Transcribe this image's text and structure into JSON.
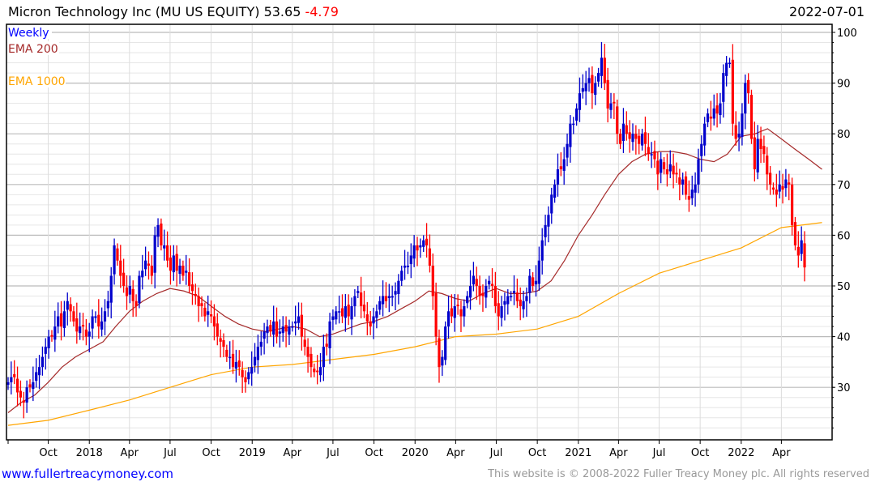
{
  "header": {
    "title": "Micron Technology Inc (MU US EQUITY)",
    "last": "53.65",
    "change": "-4.79",
    "date": "2022-07-01"
  },
  "footer": {
    "site": "www.fullertreacymoney.com",
    "copyright": "This website is © 2008-2022 Fuller Treacy Money plc. All rights reserved"
  },
  "colors": {
    "up": "#0000cc",
    "down": "#ff0000",
    "ema200": "#a52a2a",
    "ema1000": "#ffa500",
    "weekly": "#0000ff"
  },
  "chart_data": {
    "type": "candlestick",
    "title": "Micron Technology Inc (MU US EQUITY)",
    "legend": [
      "Weekly",
      "EMA 200",
      "EMA 1000"
    ],
    "legend_placement": "top-left",
    "start_week": "2017-07-03",
    "ylim": [
      20,
      101
    ],
    "yticks": [
      30,
      40,
      50,
      60,
      70,
      80,
      90,
      100
    ],
    "xticks": [
      {
        "label": "Oct",
        "date": "2017-10-01"
      },
      {
        "label": "2018",
        "date": "2018-01-01"
      },
      {
        "label": "Apr",
        "date": "2018-04-01"
      },
      {
        "label": "Jul",
        "date": "2018-07-01"
      },
      {
        "label": "Oct",
        "date": "2018-10-01"
      },
      {
        "label": "2019",
        "date": "2019-01-01"
      },
      {
        "label": "Apr",
        "date": "2019-04-01"
      },
      {
        "label": "Jul",
        "date": "2019-07-01"
      },
      {
        "label": "Oct",
        "date": "2019-10-01"
      },
      {
        "label": "2020",
        "date": "2020-01-01"
      },
      {
        "label": "Apr",
        "date": "2020-04-01"
      },
      {
        "label": "Jul",
        "date": "2020-07-01"
      },
      {
        "label": "Oct",
        "date": "2020-10-01"
      },
      {
        "label": "2021",
        "date": "2021-01-01"
      },
      {
        "label": "Apr",
        "date": "2021-04-01"
      },
      {
        "label": "Jul",
        "date": "2021-07-01"
      },
      {
        "label": "Oct",
        "date": "2021-10-01"
      },
      {
        "label": "2022",
        "date": "2022-01-01"
      },
      {
        "label": "Apr",
        "date": "2022-04-01"
      }
    ],
    "weekly_close": [
      31,
      32,
      32,
      29,
      28,
      27,
      30,
      30,
      31,
      33,
      34,
      36,
      38,
      40,
      40,
      42,
      44,
      42,
      45,
      47,
      45,
      43,
      41,
      42,
      42,
      40,
      41,
      44,
      44,
      42,
      43,
      45,
      47,
      52,
      58,
      55,
      52,
      50,
      48,
      50,
      47,
      46,
      52,
      53,
      55,
      54,
      52,
      60,
      62,
      58,
      58,
      55,
      53,
      56,
      53,
      54,
      52,
      53,
      50,
      49,
      48,
      46,
      46,
      44,
      45,
      44,
      42,
      40,
      39,
      38,
      36,
      36,
      34,
      35,
      34,
      32,
      31,
      33,
      34,
      36,
      38,
      39,
      41,
      42,
      41,
      43,
      40,
      41,
      42,
      41,
      42,
      42,
      43,
      44,
      40,
      38,
      36,
      34,
      33,
      33,
      34,
      38,
      38,
      43,
      44,
      45,
      45,
      44,
      46,
      44,
      46,
      48,
      49,
      46,
      45,
      43,
      42,
      44,
      45,
      47,
      48,
      47,
      48,
      48,
      49,
      51,
      53,
      54,
      54,
      56,
      58,
      57,
      58,
      59,
      58,
      54,
      48,
      40,
      34,
      36,
      42,
      45,
      44,
      46,
      46,
      44,
      46,
      48,
      50,
      52,
      50,
      48,
      48,
      50,
      51,
      50,
      46,
      44,
      46,
      47,
      48,
      48,
      49,
      47,
      46,
      47,
      48,
      52,
      50,
      51,
      55,
      59,
      62,
      64,
      68,
      70,
      73,
      73,
      75,
      78,
      82,
      82,
      85,
      88,
      89,
      90,
      91,
      88,
      90,
      92,
      95,
      90,
      85,
      86,
      86,
      80,
      78,
      82,
      80,
      79,
      80,
      79,
      78,
      80,
      78,
      76,
      76,
      75,
      72,
      75,
      73,
      72,
      74,
      72,
      72,
      70,
      71,
      68,
      67,
      69,
      70,
      75,
      78,
      82,
      84,
      83,
      85,
      84,
      86,
      92,
      94,
      94,
      82,
      79,
      80,
      84,
      90,
      88,
      79,
      73,
      79,
      77,
      76,
      72,
      70,
      69,
      68,
      70,
      69,
      71,
      70,
      62,
      58,
      56,
      59,
      53.65
    ],
    "ema200_monthly": {
      "start": "2017-07-01",
      "values": [
        25,
        27,
        28.5,
        31,
        34,
        36,
        37.5,
        39,
        42,
        45,
        47,
        48.5,
        49.5,
        49,
        48,
        46,
        44,
        42.5,
        41.5,
        41,
        41.5,
        42,
        41.5,
        40,
        40.5,
        41.5,
        42.5,
        43,
        44,
        45.5,
        47,
        49,
        48.5,
        47.5,
        47,
        48.5,
        49.5,
        48.5,
        48.5,
        49,
        51,
        55,
        60,
        64,
        68,
        72,
        74.5,
        76,
        76.5,
        76.5,
        76,
        75,
        74.5,
        76,
        79.5,
        80,
        81,
        79,
        77,
        75,
        73
      ]
    },
    "ema1000_quarterly": {
      "start": "2017-07-01",
      "values": [
        22.5,
        23.5,
        25.5,
        27.5,
        30,
        32.5,
        34,
        34.5,
        35.5,
        36.5,
        38,
        40,
        40.5,
        41.5,
        44,
        48.5,
        52.5,
        55,
        57.5,
        61.5,
        62.5
      ]
    }
  }
}
